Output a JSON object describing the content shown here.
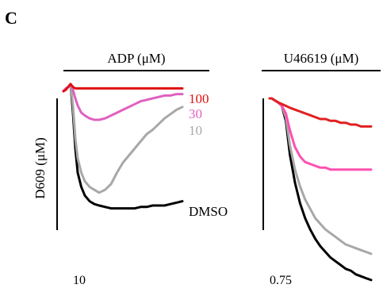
{
  "panel_letter": "C",
  "chart_data": [
    {
      "type": "line",
      "title": "ADP (μM)",
      "ylabel": "D609 (μM)",
      "scale_label": "10",
      "y_direction": "down",
      "x": [
        0,
        0.02,
        0.04,
        0.06,
        0.08,
        0.1,
        0.12,
        0.15,
        0.18,
        0.22,
        0.26,
        0.3,
        0.35,
        0.4,
        0.45,
        0.5,
        0.55,
        0.6,
        0.65,
        0.7,
        0.75,
        0.8,
        0.85,
        0.9,
        0.95,
        1.0
      ],
      "ylim": [
        0,
        1
      ],
      "series": [
        {
          "name": "DMSO",
          "color": "#000000",
          "values": [
            0.05,
            0.03,
            0.02,
            0.0,
            0.2,
            0.45,
            0.62,
            0.72,
            0.78,
            0.82,
            0.84,
            0.85,
            0.86,
            0.87,
            0.87,
            0.87,
            0.87,
            0.87,
            0.86,
            0.86,
            0.85,
            0.85,
            0.85,
            0.84,
            0.83,
            0.82
          ]
        },
        {
          "name": "10",
          "color": "#a8a8a8",
          "values": [
            0.05,
            0.03,
            0.02,
            0.0,
            0.15,
            0.38,
            0.52,
            0.62,
            0.68,
            0.72,
            0.74,
            0.76,
            0.74,
            0.7,
            0.62,
            0.55,
            0.5,
            0.45,
            0.4,
            0.35,
            0.32,
            0.28,
            0.24,
            0.21,
            0.18,
            0.16
          ]
        },
        {
          "name": "30",
          "color": "#e060c0",
          "values": [
            0.05,
            0.03,
            0.02,
            0.0,
            0.04,
            0.1,
            0.15,
            0.2,
            0.22,
            0.24,
            0.25,
            0.25,
            0.24,
            0.22,
            0.2,
            0.18,
            0.16,
            0.14,
            0.12,
            0.11,
            0.1,
            0.09,
            0.08,
            0.08,
            0.07,
            0.07
          ]
        },
        {
          "name": "100",
          "color": "#e01010",
          "values": [
            0.05,
            0.04,
            0.02,
            0.0,
            0.02,
            0.03,
            0.03,
            0.03,
            0.03,
            0.03,
            0.03,
            0.03,
            0.03,
            0.03,
            0.03,
            0.03,
            0.03,
            0.03,
            0.03,
            0.03,
            0.03,
            0.03,
            0.03,
            0.03,
            0.03,
            0.03
          ]
        }
      ]
    },
    {
      "type": "line",
      "title": "U46619 (μM)",
      "ylabel": "",
      "scale_label": "0.75",
      "y_direction": "down",
      "x": [
        0,
        0.02,
        0.05,
        0.08,
        0.12,
        0.16,
        0.2,
        0.25,
        0.3,
        0.35,
        0.4,
        0.45,
        0.5,
        0.55,
        0.6,
        0.65,
        0.7,
        0.75,
        0.8,
        0.85,
        0.9,
        0.95,
        1.0
      ],
      "ylim": [
        0,
        1
      ],
      "series": [
        {
          "name": "",
          "color": "#000000",
          "values": [
            0.0,
            0.0,
            0.01,
            0.02,
            0.04,
            0.12,
            0.3,
            0.45,
            0.56,
            0.64,
            0.7,
            0.75,
            0.79,
            0.82,
            0.85,
            0.87,
            0.89,
            0.91,
            0.92,
            0.94,
            0.95,
            0.96,
            0.97
          ]
        },
        {
          "name": "",
          "color": "#a8a8a8",
          "values": [
            0.0,
            0.0,
            0.01,
            0.02,
            0.04,
            0.1,
            0.25,
            0.38,
            0.47,
            0.54,
            0.59,
            0.64,
            0.67,
            0.7,
            0.72,
            0.74,
            0.76,
            0.78,
            0.79,
            0.8,
            0.81,
            0.82,
            0.83
          ]
        },
        {
          "name": "",
          "color": "#ff50b0",
          "values": [
            0.0,
            0.0,
            0.01,
            0.02,
            0.04,
            0.08,
            0.17,
            0.26,
            0.31,
            0.34,
            0.35,
            0.36,
            0.37,
            0.37,
            0.38,
            0.38,
            0.38,
            0.38,
            0.38,
            0.38,
            0.38,
            0.38,
            0.38
          ]
        },
        {
          "name": "",
          "color": "#e02020",
          "values": [
            0.0,
            0.0,
            0.01,
            0.02,
            0.03,
            0.04,
            0.05,
            0.06,
            0.07,
            0.08,
            0.09,
            0.1,
            0.11,
            0.11,
            0.12,
            0.12,
            0.13,
            0.13,
            0.14,
            0.14,
            0.15,
            0.15,
            0.15
          ]
        }
      ]
    }
  ]
}
